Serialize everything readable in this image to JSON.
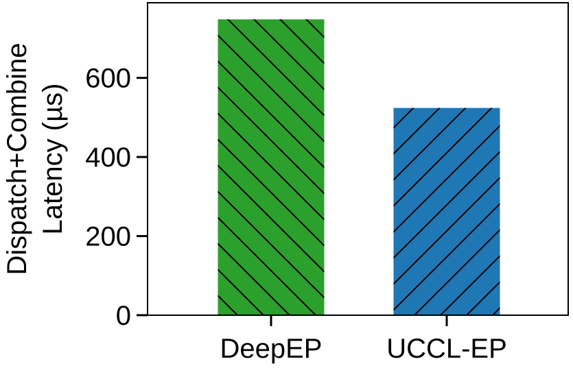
{
  "chart_data": {
    "type": "bar",
    "title": "",
    "xlabel": "",
    "ylabel_lines": [
      "Dispatch+Combine",
      "Latency (µs)"
    ],
    "categories": [
      "DeepEP",
      "UCCL-EP"
    ],
    "values": [
      748,
      524
    ],
    "ylim": [
      0,
      790
    ],
    "yticks": [
      0,
      200,
      400,
      600
    ],
    "ytick_labels": [
      "0",
      "200",
      "400",
      "600"
    ],
    "grid": false,
    "legend": "none",
    "bar_colors": [
      "#2ca02c",
      "#1f77b4"
    ],
    "hatch_directions": [
      "backslash",
      "slash"
    ]
  }
}
